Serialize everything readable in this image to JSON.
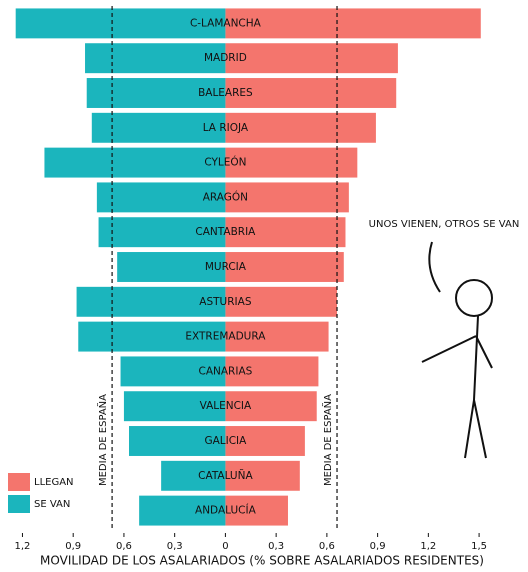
{
  "chart_data": {
    "type": "diverging-bar",
    "x_label": "MOVILIDAD DE LOS ASALARIADOS (% SOBRE ASALARIADOS RESIDENTES)",
    "annotation": "UNOS VIENEN, OTROS SE VAN",
    "categories": [
      "C-LAMANCHA",
      "MADRID",
      "BALEARES",
      "LA RIOJA",
      "CYLEÓN",
      "ARAGÓN",
      "CANTABRIA",
      "MURCIA",
      "ASTURIAS",
      "EXTREMADURA",
      "CANARIAS",
      "VALENCIA",
      "GALICIA",
      "CATALUÑA",
      "ANDALUCÍA"
    ],
    "series": [
      {
        "name": "LLEGAN",
        "color": "#f4756d",
        "values": [
          1.51,
          1.02,
          1.01,
          0.89,
          0.78,
          0.73,
          0.71,
          0.7,
          0.66,
          0.61,
          0.55,
          0.54,
          0.47,
          0.44,
          0.37
        ]
      },
      {
        "name": "SE VAN",
        "color": "#1bb5bd",
        "values": [
          -1.24,
          -0.83,
          -0.82,
          -0.79,
          -1.07,
          -0.76,
          -0.75,
          -0.64,
          -0.88,
          -0.87,
          -0.62,
          -0.6,
          -0.57,
          -0.38,
          -0.51
        ]
      }
    ],
    "xlim": [
      -1.25,
      1.6
    ],
    "xticks": [
      {
        "value": -1.2,
        "label": "1,2"
      },
      {
        "value": -0.9,
        "label": "0,9"
      },
      {
        "value": -0.6,
        "label": "0,6"
      },
      {
        "value": -0.3,
        "label": "0,3"
      },
      0,
      {
        "value": 0.3,
        "label": "0,3"
      },
      {
        "value": 0.6,
        "label": "0,6"
      },
      {
        "value": 0.9,
        "label": "0,9"
      },
      {
        "value": 1.2,
        "label": "1,2"
      },
      {
        "value": 1.5,
        "label": "1,5"
      }
    ],
    "reference_lines": [
      {
        "value": -0.67,
        "label": "MEDIA DE ESPAÑA"
      },
      {
        "value": 0.66,
        "label": "MEDIA DE ESPAÑA"
      }
    ],
    "legend": "lower left"
  }
}
